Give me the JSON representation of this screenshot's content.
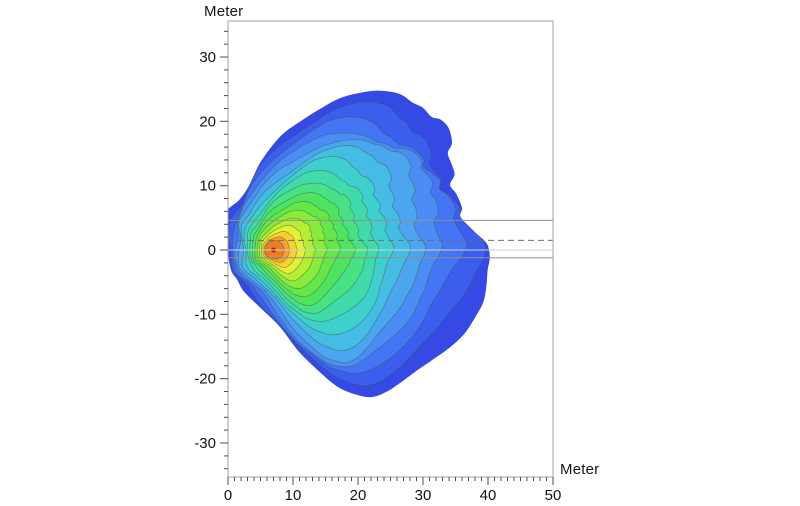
{
  "figure": {
    "background": "#ffffff",
    "frame_color": "#a0a0a0",
    "tick_color": "#4d4d4d"
  },
  "axes": {
    "x": {
      "label": "Meter",
      "min": 0,
      "max": 50,
      "major_tick_values": [
        0,
        10,
        20,
        30,
        40,
        50
      ],
      "minor_tick_step": 1
    },
    "y": {
      "label": "Meter",
      "min": -35,
      "max": 35,
      "major_tick_values": [
        30,
        20,
        10,
        0,
        -10,
        -20,
        -30
      ],
      "minor_tick_step": 2
    }
  },
  "reference_lines": [
    {
      "y": 4.6,
      "style": "solid",
      "color": "#909090"
    },
    {
      "y": 1.5,
      "style": "dashed",
      "color": "#6e6e6e"
    },
    {
      "y": 0.0,
      "style": "solid",
      "color": "#d2d2d2"
    },
    {
      "y": -1.2,
      "style": "solid",
      "color": "#909090"
    }
  ],
  "chart_data": {
    "type": "heatmap",
    "subtype": "filled_contour_plume",
    "title": "",
    "xlabel": "Meter",
    "ylabel": "Meter",
    "xlim": [
      0,
      50
    ],
    "ylim": [
      -35,
      35
    ],
    "grid": false,
    "legend": "none",
    "source_point": {
      "x": 7,
      "y": 0
    },
    "source_marker_color": "#8b2c0f",
    "contour_line_color": "#3c5247",
    "outer_boundary": [
      [
        0,
        5.5
      ],
      [
        1.5,
        8.2
      ],
      [
        3,
        10.8
      ],
      [
        5,
        13.8
      ],
      [
        8,
        17.0
      ],
      [
        11,
        19.3
      ],
      [
        14,
        21.4
      ],
      [
        17,
        23.2
      ],
      [
        20,
        24.1
      ],
      [
        23,
        24.4
      ],
      [
        26,
        23.8
      ],
      [
        28,
        22.4
      ],
      [
        29.5,
        21.7
      ],
      [
        31,
        20.4
      ],
      [
        32.5,
        20.1
      ],
      [
        34,
        19.0
      ],
      [
        35,
        17.0
      ],
      [
        34.6,
        15.5
      ],
      [
        35.7,
        13.9
      ],
      [
        36.5,
        12.4
      ],
      [
        36.0,
        10.8
      ],
      [
        37.2,
        9.3
      ],
      [
        38,
        7.0
      ],
      [
        37.5,
        5.4
      ],
      [
        38.8,
        3.1
      ],
      [
        40.2,
        1.0
      ],
      [
        39.8,
        -1.2
      ],
      [
        38.8,
        -3.1
      ],
      [
        38.0,
        -5.4
      ],
      [
        37.2,
        -7.7
      ],
      [
        36.0,
        -10.0
      ],
      [
        34.9,
        -12.4
      ],
      [
        33.4,
        -14.7
      ],
      [
        31.4,
        -17.0
      ],
      [
        29.5,
        -18.9
      ],
      [
        27.2,
        -20.9
      ],
      [
        24.9,
        -22.4
      ],
      [
        22.5,
        -23.2
      ],
      [
        20.3,
        -22.9
      ],
      [
        17.2,
        -21.7
      ],
      [
        14.2,
        -19.3
      ],
      [
        11.0,
        -16.3
      ],
      [
        8.0,
        -12.4
      ],
      [
        5.0,
        -8.6
      ],
      [
        2.6,
        -6.2
      ],
      [
        1.1,
        -4.8
      ],
      [
        0.2,
        -3.4
      ],
      [
        0,
        -0.5
      ],
      [
        0,
        2.5
      ]
    ],
    "bands": [
      {
        "t": 1.0,
        "color": "#3549e4"
      },
      {
        "t": 0.95,
        "color": "#3b5eee"
      },
      {
        "t": 0.9,
        "color": "#4375f4"
      },
      {
        "t": 0.85,
        "color": "#4b8df4"
      },
      {
        "t": 0.8,
        "color": "#4ba5ef"
      },
      {
        "t": 0.74,
        "color": "#44bce4"
      },
      {
        "t": 0.68,
        "color": "#3fd0cd"
      },
      {
        "t": 0.62,
        "color": "#41dbab"
      },
      {
        "t": 0.56,
        "color": "#48e186"
      },
      {
        "t": 0.5,
        "color": "#50e35f"
      },
      {
        "t": 0.44,
        "color": "#65e74a"
      },
      {
        "t": 0.38,
        "color": "#89ec3c"
      },
      {
        "t": 0.315,
        "color": "#b4ef33"
      },
      {
        "t": 0.25,
        "color": "#e4ef36"
      },
      {
        "t": 0.19,
        "color": "#f9d02f"
      },
      {
        "t": 0.125,
        "color": "#f9a233"
      },
      {
        "t": 0.06,
        "color": "#ee7d22"
      }
    ]
  }
}
